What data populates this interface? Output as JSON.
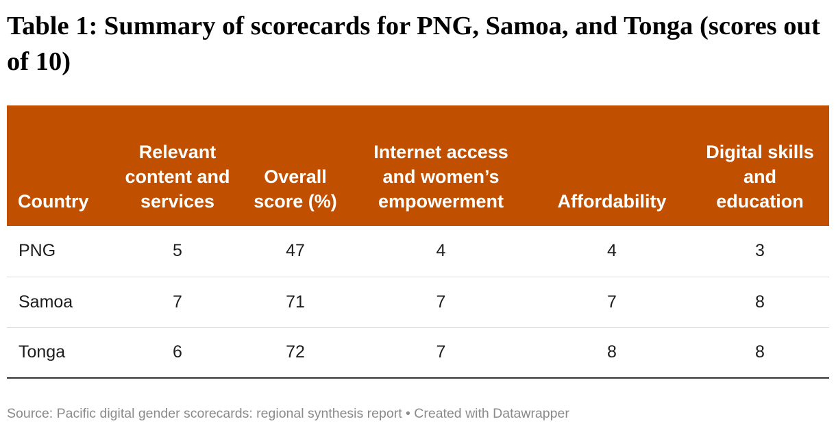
{
  "title": "Table 1: Summary of scorecards for PNG, Samoa, and Tonga (scores out of 10)",
  "header_color": "#c05000",
  "source_note": "Source: Pacific digital gender scorecards: regional synthesis report • Created with Datawrapper",
  "chart_data": {
    "type": "table",
    "columns": [
      "Country",
      "Relevant content and services",
      "Overall score (%)",
      "Internet access and women’s empowerment",
      "Affordability",
      "Digital skills and education"
    ],
    "rows": [
      [
        "PNG",
        "5",
        "47",
        "4",
        "4",
        "3"
      ],
      [
        "Samoa",
        "7",
        "71",
        "7",
        "7",
        "8"
      ],
      [
        "Tonga",
        "6",
        "72",
        "7",
        "8",
        "8"
      ]
    ]
  }
}
